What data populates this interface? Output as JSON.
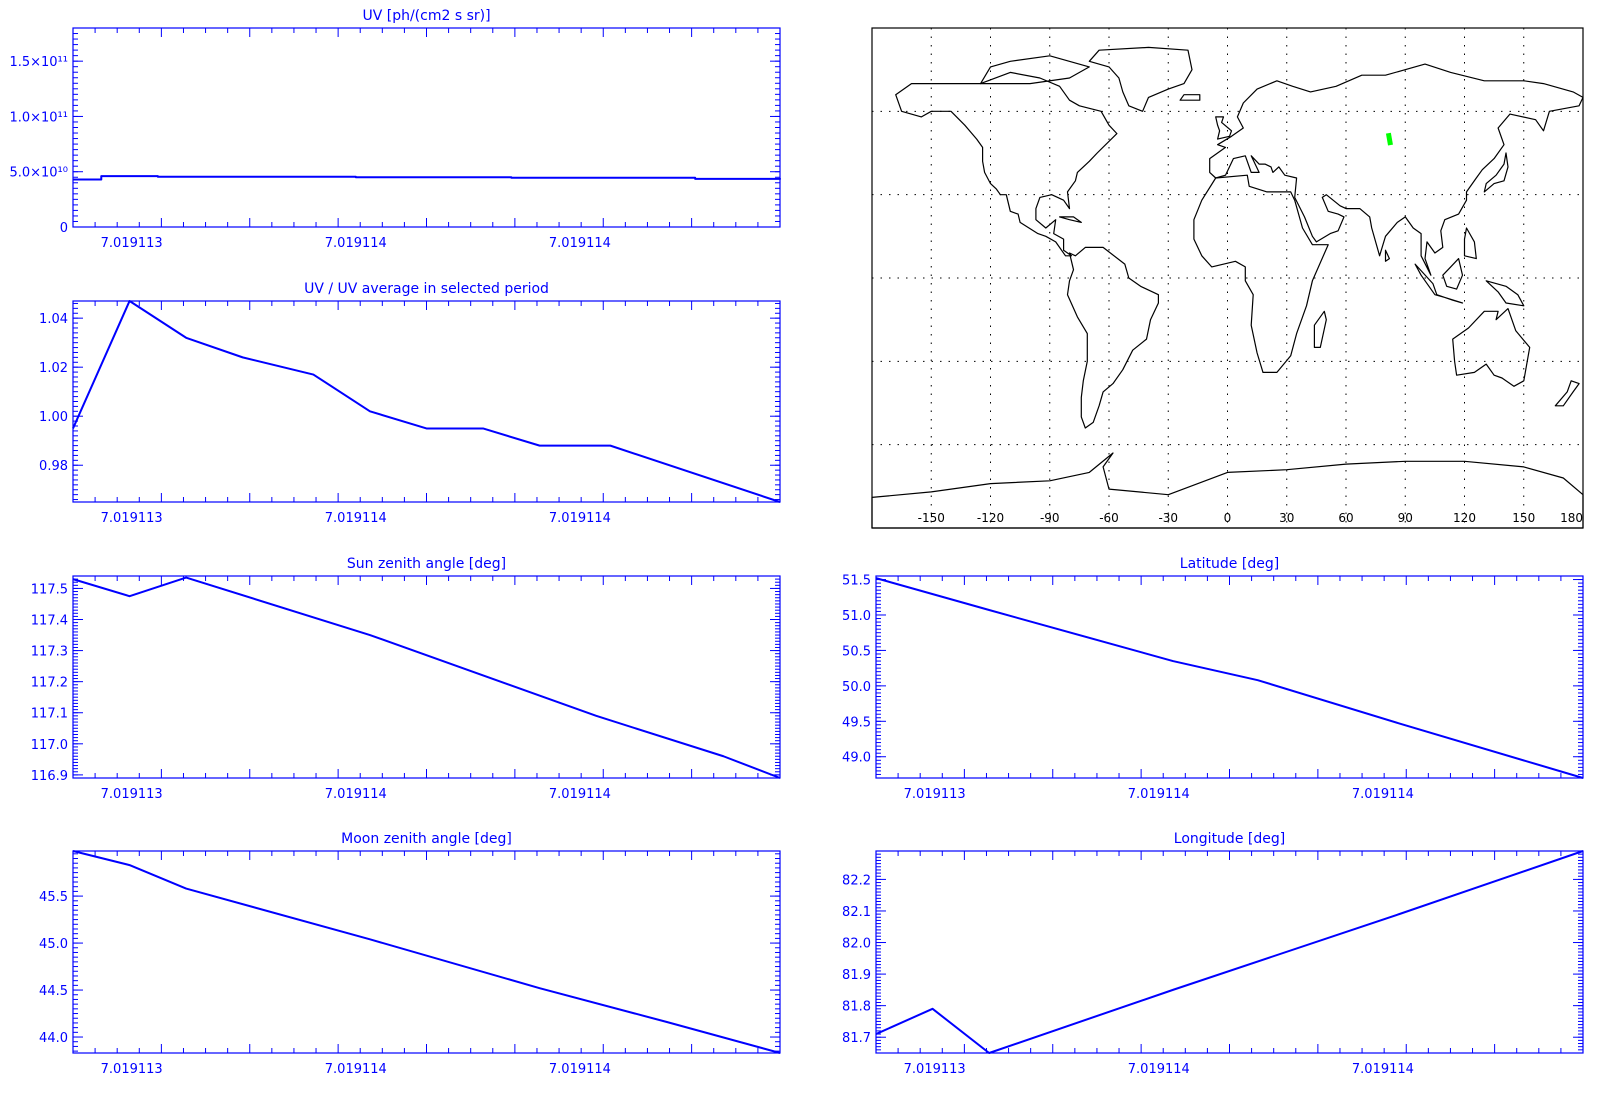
{
  "colors": {
    "line": "#0000ff",
    "map": "#000000",
    "marker": "#00ff00",
    "grid": "#000000"
  },
  "chart_data": [
    {
      "id": "uv",
      "type": "line",
      "title": "UV [ph/(cm2 s sr)]",
      "xlabel": "",
      "ylabel": "",
      "xlim": [
        0,
        1
      ],
      "xtick_labels": [
        {
          "x": 0.083,
          "label": "7.019113"
        },
        {
          "x": 0.4,
          "label": "7.019114"
        },
        {
          "x": 0.717,
          "label": "7.019114"
        }
      ],
      "ylim": [
        0,
        180000000000.0
      ],
      "yticks": [
        {
          "value": 0,
          "label": "0"
        },
        {
          "value": 50000000000.0,
          "label": "5.0×10¹⁰"
        },
        {
          "value": 100000000000.0,
          "label": "1.0×10¹¹"
        },
        {
          "value": 150000000000.0,
          "label": "1.5×10¹¹"
        }
      ],
      "step": true,
      "series": [
        {
          "x": [
            0,
            0.04,
            0.12,
            0.4,
            0.62,
            0.88,
            1
          ],
          "y": [
            43000000000.0,
            46000000000.0,
            45500000000.0,
            45000000000.0,
            44500000000.0,
            43500000000.0,
            43000000000.0
          ]
        }
      ]
    },
    {
      "id": "uv-ratio",
      "type": "line",
      "title": "UV / UV average in selected period",
      "xlabel": "",
      "ylabel": "",
      "xlim": [
        0,
        1
      ],
      "xtick_labels": [
        {
          "x": 0.083,
          "label": "7.019113"
        },
        {
          "x": 0.4,
          "label": "7.019114"
        },
        {
          "x": 0.717,
          "label": "7.019114"
        }
      ],
      "ylim": [
        0.965,
        1.047
      ],
      "yticks": [
        {
          "value": 0.98,
          "label": "0.98"
        },
        {
          "value": 1.0,
          "label": "1.00"
        },
        {
          "value": 1.02,
          "label": "1.02"
        },
        {
          "value": 1.04,
          "label": "1.04"
        }
      ],
      "series": [
        {
          "x": [
            0,
            0.08,
            0.16,
            0.24,
            0.34,
            0.42,
            0.5,
            0.58,
            0.66,
            0.76,
            1
          ],
          "y": [
            0.995,
            1.047,
            1.032,
            1.024,
            1.017,
            1.002,
            0.995,
            0.995,
            0.988,
            0.988,
            0.965
          ]
        }
      ]
    },
    {
      "id": "sun-zenith",
      "type": "line",
      "title": "Sun zenith angle [deg]",
      "xlabel": "",
      "ylabel": "",
      "xlim": [
        0,
        1
      ],
      "xtick_labels": [
        {
          "x": 0.083,
          "label": "7.019113"
        },
        {
          "x": 0.4,
          "label": "7.019114"
        },
        {
          "x": 0.717,
          "label": "7.019114"
        }
      ],
      "ylim": [
        116.89,
        117.54
      ],
      "yticks": [
        {
          "value": 116.9,
          "label": "116.9"
        },
        {
          "value": 117.0,
          "label": "117.0"
        },
        {
          "value": 117.1,
          "label": "117.1"
        },
        {
          "value": 117.2,
          "label": "117.2"
        },
        {
          "value": 117.3,
          "label": "117.3"
        },
        {
          "value": 117.4,
          "label": "117.4"
        },
        {
          "value": 117.5,
          "label": "117.5"
        }
      ],
      "series": [
        {
          "x": [
            0,
            0.08,
            0.16,
            0.42,
            0.74,
            0.92,
            1
          ],
          "y": [
            117.53,
            117.475,
            117.535,
            117.35,
            117.09,
            116.96,
            116.89
          ]
        }
      ]
    },
    {
      "id": "latitude",
      "type": "line",
      "title": "Latitude [deg]",
      "xlabel": "",
      "ylabel": "",
      "xlim": [
        0,
        1
      ],
      "xtick_labels": [
        {
          "x": 0.083,
          "label": "7.019113"
        },
        {
          "x": 0.4,
          "label": "7.019114"
        },
        {
          "x": 0.717,
          "label": "7.019114"
        }
      ],
      "ylim": [
        48.7,
        51.55
      ],
      "yticks": [
        {
          "value": 49.0,
          "label": "49.0"
        },
        {
          "value": 49.5,
          "label": "49.5"
        },
        {
          "value": 50.0,
          "label": "50.0"
        },
        {
          "value": 50.5,
          "label": "50.5"
        },
        {
          "value": 51.0,
          "label": "51.0"
        },
        {
          "value": 51.5,
          "label": "51.5"
        }
      ],
      "series": [
        {
          "x": [
            0,
            0.16,
            0.42,
            0.54,
            0.74,
            1
          ],
          "y": [
            51.52,
            51.07,
            50.35,
            50.08,
            49.47,
            48.7
          ]
        }
      ]
    },
    {
      "id": "moon-zenith",
      "type": "line",
      "title": "Moon zenith angle [deg]",
      "xlabel": "",
      "ylabel": "",
      "xlim": [
        0,
        1
      ],
      "xtick_labels": [
        {
          "x": 0.083,
          "label": "7.019113"
        },
        {
          "x": 0.4,
          "label": "7.019114"
        },
        {
          "x": 0.717,
          "label": "7.019114"
        }
      ],
      "ylim": [
        43.83,
        45.98
      ],
      "yticks": [
        {
          "value": 44.0,
          "label": "44.0"
        },
        {
          "value": 44.5,
          "label": "44.5"
        },
        {
          "value": 45.0,
          "label": "45.0"
        },
        {
          "value": 45.5,
          "label": "45.5"
        }
      ],
      "series": [
        {
          "x": [
            0,
            0.08,
            0.16,
            0.42,
            0.66,
            0.84,
            1
          ],
          "y": [
            45.98,
            45.83,
            45.58,
            45.04,
            44.52,
            44.16,
            43.83
          ]
        }
      ]
    },
    {
      "id": "longitude",
      "type": "line",
      "title": "Longitude [deg]",
      "xlabel": "",
      "ylabel": "",
      "xlim": [
        0,
        1
      ],
      "xtick_labels": [
        {
          "x": 0.083,
          "label": "7.019113"
        },
        {
          "x": 0.4,
          "label": "7.019114"
        },
        {
          "x": 0.717,
          "label": "7.019114"
        }
      ],
      "ylim": [
        81.65,
        82.29
      ],
      "yticks": [
        {
          "value": 81.7,
          "label": "81.7"
        },
        {
          "value": 81.8,
          "label": "81.8"
        },
        {
          "value": 81.9,
          "label": "81.9"
        },
        {
          "value": 82.0,
          "label": "82.0"
        },
        {
          "value": 82.1,
          "label": "82.1"
        },
        {
          "value": 82.2,
          "label": "82.2"
        }
      ],
      "series": [
        {
          "x": [
            0,
            0.08,
            0.16,
            0.42,
            0.74,
            1
          ],
          "y": [
            81.71,
            81.79,
            81.65,
            81.85,
            82.09,
            82.29
          ]
        }
      ]
    }
  ],
  "map": {
    "type": "map",
    "projection": "equirectangular",
    "lon_range": [
      -180,
      180
    ],
    "lat_range": [
      -90,
      90
    ],
    "xtick_labels": [
      "-150",
      "-120",
      "-90",
      "-60",
      "-30",
      "0",
      "30",
      "60",
      "90",
      "120",
      "150",
      "180"
    ],
    "grid": true,
    "marker": {
      "lon": 82.0,
      "lat": 50.0
    }
  }
}
